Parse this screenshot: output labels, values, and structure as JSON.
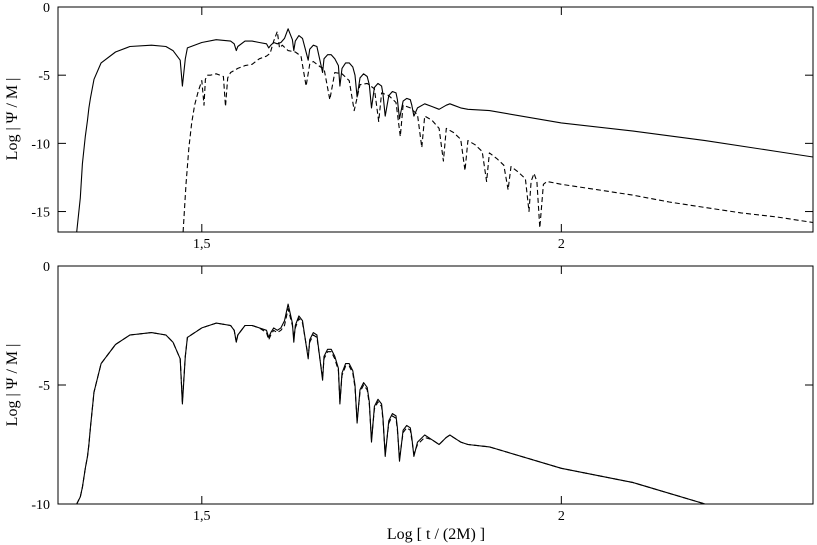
{
  "chart_data": [
    {
      "type": "line",
      "title": "",
      "xlabel": "",
      "ylabel": "Log | Ψ / M |",
      "xlim": [
        1.3,
        2.35
      ],
      "ylim": [
        -16.5,
        0
      ],
      "xticks": [
        1.5,
        2
      ],
      "xtick_labels": [
        "1,5",
        "2"
      ],
      "yticks": [
        0,
        -5,
        -10,
        -15
      ],
      "ytick_labels": [
        "0",
        "-5",
        "-10",
        "-15"
      ],
      "grid": false,
      "series": [
        {
          "style": "solid",
          "x": [
            1.326,
            1.331,
            1.334,
            1.338,
            1.341,
            1.343,
            1.345,
            1.35,
            1.36,
            1.38,
            1.4,
            1.43,
            1.45,
            1.46,
            1.47,
            1.473,
            1.477,
            1.48,
            1.5,
            1.52,
            1.54,
            1.545,
            1.548,
            1.55,
            1.56,
            1.57,
            1.58,
            1.59,
            1.593,
            1.596,
            1.6,
            1.605,
            1.61,
            1.615,
            1.62,
            1.626,
            1.628,
            1.63,
            1.635,
            1.64,
            1.648,
            1.65,
            1.655,
            1.66,
            1.668,
            1.67,
            1.675,
            1.68,
            1.685,
            1.69,
            1.692,
            1.695,
            1.7,
            1.705,
            1.71,
            1.713,
            1.716,
            1.72,
            1.725,
            1.73,
            1.733,
            1.736,
            1.74,
            1.745,
            1.75,
            1.752,
            1.755,
            1.76,
            1.765,
            1.77,
            1.772,
            1.775,
            1.78,
            1.785,
            1.79,
            1.792,
            1.795,
            1.8,
            1.81,
            1.82,
            1.83,
            1.84,
            1.845,
            1.85,
            1.86,
            1.87,
            1.9,
            2.0,
            2.1,
            2.2,
            2.3,
            2.35
          ],
          "y": [
            -16.5,
            -14.0,
            -11.5,
            -9.5,
            -8.3,
            -7.4,
            -6.7,
            -5.3,
            -4.1,
            -3.3,
            -2.9,
            -2.8,
            -2.9,
            -3.2,
            -3.9,
            -5.8,
            -3.8,
            -3.0,
            -2.6,
            -2.4,
            -2.5,
            -2.7,
            -3.2,
            -2.9,
            -2.5,
            -2.5,
            -2.6,
            -2.7,
            -3.0,
            -2.8,
            -2.6,
            -2.7,
            -2.6,
            -2.3,
            -1.6,
            -2.4,
            -3.2,
            -2.5,
            -2.1,
            -2.3,
            -3.9,
            -3.1,
            -2.8,
            -2.9,
            -4.8,
            -3.8,
            -3.5,
            -3.5,
            -3.8,
            -4.3,
            -5.8,
            -4.5,
            -4.1,
            -4.1,
            -4.4,
            -5.0,
            -6.6,
            -5.2,
            -4.9,
            -5.1,
            -5.7,
            -7.4,
            -5.9,
            -5.6,
            -5.8,
            -6.4,
            -8.0,
            -6.5,
            -6.2,
            -6.3,
            -6.8,
            -8.2,
            -6.9,
            -6.7,
            -6.8,
            -7.2,
            -8.0,
            -7.4,
            -7.1,
            -7.3,
            -7.5,
            -7.2,
            -7.1,
            -7.2,
            -7.4,
            -7.5,
            -7.6,
            -8.5,
            -9.1,
            -9.8,
            -10.6,
            -11.0
          ]
        },
        {
          "style": "dashed",
          "x": [
            1.474,
            1.478,
            1.482,
            1.486,
            1.49,
            1.495,
            1.5,
            1.503,
            1.505,
            1.508,
            1.512,
            1.52,
            1.53,
            1.533,
            1.536,
            1.54,
            1.55,
            1.56,
            1.57,
            1.575,
            1.58,
            1.59,
            1.595,
            1.6,
            1.605,
            1.608,
            1.612,
            1.62,
            1.63,
            1.638,
            1.645,
            1.65,
            1.655,
            1.66,
            1.665,
            1.67,
            1.678,
            1.685,
            1.695,
            1.705,
            1.712,
            1.72,
            1.73,
            1.74,
            1.746,
            1.75,
            1.76,
            1.77,
            1.776,
            1.78,
            1.79,
            1.8,
            1.806,
            1.81,
            1.82,
            1.83,
            1.836,
            1.84,
            1.85,
            1.86,
            1.866,
            1.87,
            1.88,
            1.89,
            1.896,
            1.9,
            1.91,
            1.92,
            1.926,
            1.93,
            1.94,
            1.95,
            1.955,
            1.958,
            1.962,
            1.966,
            1.97,
            1.975,
            1.98,
            2.0,
            2.05,
            2.1,
            2.15,
            2.2,
            2.25,
            2.3,
            2.35
          ],
          "y": [
            -16.5,
            -13.0,
            -10.3,
            -8.5,
            -7.2,
            -6.2,
            -5.4,
            -7.2,
            -5.3,
            -5.0,
            -5.0,
            -4.9,
            -5.1,
            -7.3,
            -5.2,
            -4.8,
            -4.5,
            -4.3,
            -4.2,
            -4.0,
            -3.8,
            -3.6,
            -3.4,
            -2.5,
            -1.8,
            -3.0,
            -2.8,
            -3.2,
            -3.3,
            -3.6,
            -5.8,
            -4.2,
            -4.0,
            -4.2,
            -4.4,
            -4.5,
            -6.8,
            -4.8,
            -4.9,
            -5.4,
            -7.6,
            -5.7,
            -5.6,
            -6.0,
            -8.4,
            -6.3,
            -6.5,
            -7.0,
            -9.5,
            -7.2,
            -7.4,
            -7.9,
            -10.3,
            -8.0,
            -8.3,
            -8.9,
            -11.3,
            -8.9,
            -9.2,
            -9.7,
            -12.0,
            -9.8,
            -10.1,
            -10.6,
            -12.8,
            -10.7,
            -11.1,
            -11.6,
            -13.4,
            -11.7,
            -12.1,
            -12.6,
            -15.0,
            -12.8,
            -12.2,
            -12.8,
            -16.2,
            -13.0,
            -12.8,
            -13.0,
            -13.4,
            -13.8,
            -14.3,
            -14.7,
            -15.1,
            -15.4,
            -15.8
          ]
        }
      ]
    },
    {
      "type": "line",
      "title": "",
      "xlabel": "Log [ t / (2M) ]",
      "ylabel": "Log | Ψ / M |",
      "xlim": [
        1.3,
        2.35
      ],
      "ylim": [
        -10,
        0
      ],
      "xticks": [
        1.5,
        2
      ],
      "xtick_labels": [
        "1,5",
        "2"
      ],
      "yticks": [
        0,
        -5,
        -10
      ],
      "ytick_labels": [
        "0",
        "-5",
        "-10"
      ],
      "grid": false,
      "series": [
        {
          "style": "solid",
          "x": [
            1.326,
            1.331,
            1.334,
            1.338,
            1.341,
            1.343,
            1.345,
            1.35,
            1.36,
            1.38,
            1.4,
            1.43,
            1.45,
            1.46,
            1.47,
            1.473,
            1.477,
            1.48,
            1.5,
            1.52,
            1.54,
            1.545,
            1.548,
            1.55,
            1.56,
            1.57,
            1.58,
            1.59,
            1.593,
            1.596,
            1.6,
            1.605,
            1.61,
            1.615,
            1.62,
            1.626,
            1.628,
            1.63,
            1.635,
            1.64,
            1.648,
            1.65,
            1.655,
            1.66,
            1.668,
            1.67,
            1.675,
            1.68,
            1.685,
            1.69,
            1.692,
            1.695,
            1.7,
            1.705,
            1.71,
            1.713,
            1.716,
            1.72,
            1.725,
            1.73,
            1.733,
            1.736,
            1.74,
            1.745,
            1.75,
            1.752,
            1.755,
            1.76,
            1.765,
            1.77,
            1.772,
            1.775,
            1.78,
            1.785,
            1.79,
            1.792,
            1.795,
            1.8,
            1.81,
            1.82,
            1.83,
            1.84,
            1.845,
            1.85,
            1.86,
            1.87,
            1.9,
            2.0,
            2.1,
            2.2
          ],
          "y": [
            -10.0,
            -9.7,
            -9.3,
            -8.5,
            -8.0,
            -7.5,
            -6.8,
            -5.3,
            -4.1,
            -3.3,
            -2.9,
            -2.8,
            -2.9,
            -3.2,
            -3.9,
            -5.8,
            -3.8,
            -3.0,
            -2.6,
            -2.4,
            -2.5,
            -2.7,
            -3.2,
            -2.9,
            -2.5,
            -2.5,
            -2.6,
            -2.7,
            -3.0,
            -2.8,
            -2.6,
            -2.7,
            -2.6,
            -2.3,
            -1.6,
            -2.4,
            -3.2,
            -2.5,
            -2.1,
            -2.3,
            -3.9,
            -3.1,
            -2.8,
            -2.9,
            -4.8,
            -3.8,
            -3.5,
            -3.5,
            -3.8,
            -4.3,
            -5.8,
            -4.5,
            -4.1,
            -4.1,
            -4.4,
            -5.0,
            -6.6,
            -5.2,
            -4.9,
            -5.1,
            -5.7,
            -7.4,
            -5.9,
            -5.6,
            -5.8,
            -6.4,
            -8.0,
            -6.5,
            -6.2,
            -6.3,
            -6.8,
            -8.2,
            -6.9,
            -6.7,
            -6.8,
            -7.2,
            -8.0,
            -7.4,
            -7.1,
            -7.3,
            -7.5,
            -7.2,
            -7.1,
            -7.2,
            -7.4,
            -7.5,
            -7.6,
            -8.5,
            -9.1,
            -10.0
          ]
        },
        {
          "style": "dashed",
          "x": [
            1.326,
            1.331,
            1.334,
            1.338,
            1.341,
            1.343,
            1.345,
            1.35,
            1.36,
            1.38,
            1.4,
            1.43,
            1.45,
            1.46,
            1.47,
            1.473,
            1.477,
            1.48,
            1.5,
            1.52,
            1.54,
            1.545,
            1.548,
            1.55,
            1.56,
            1.57,
            1.58,
            1.59,
            1.593,
            1.596,
            1.6,
            1.605,
            1.61,
            1.615,
            1.62,
            1.626,
            1.628,
            1.63,
            1.635,
            1.64,
            1.648,
            1.65,
            1.655,
            1.66,
            1.668,
            1.67,
            1.675,
            1.68,
            1.685,
            1.69,
            1.692,
            1.695,
            1.7,
            1.705,
            1.71,
            1.713,
            1.716,
            1.72,
            1.725,
            1.73,
            1.733,
            1.736,
            1.74,
            1.745,
            1.75,
            1.752,
            1.755,
            1.76,
            1.765,
            1.77,
            1.772,
            1.775,
            1.78,
            1.785,
            1.79,
            1.792,
            1.795,
            1.8,
            1.81,
            1.82,
            1.83,
            1.84,
            1.845,
            1.85,
            1.86,
            1.87,
            1.9,
            2.0,
            2.1,
            2.2
          ],
          "y": [
            -10.0,
            -9.7,
            -9.3,
            -8.5,
            -8.0,
            -7.5,
            -6.8,
            -5.3,
            -4.1,
            -3.3,
            -2.9,
            -2.8,
            -2.9,
            -3.2,
            -3.9,
            -5.7,
            -3.8,
            -3.0,
            -2.6,
            -2.4,
            -2.5,
            -2.7,
            -3.2,
            -2.9,
            -2.5,
            -2.5,
            -2.6,
            -2.8,
            -3.1,
            -2.9,
            -2.7,
            -2.8,
            -2.7,
            -2.5,
            -1.8,
            -2.5,
            -3.0,
            -2.6,
            -2.2,
            -2.4,
            -3.8,
            -3.2,
            -2.9,
            -3.0,
            -4.7,
            -3.9,
            -3.6,
            -3.6,
            -3.9,
            -4.4,
            -5.7,
            -4.6,
            -4.2,
            -4.2,
            -4.5,
            -5.1,
            -6.5,
            -5.3,
            -5.0,
            -5.2,
            -5.8,
            -7.3,
            -6.0,
            -5.7,
            -5.9,
            -6.5,
            -7.9,
            -6.6,
            -6.3,
            -6.4,
            -6.9,
            -8.1,
            -7.0,
            -6.8,
            -6.9,
            -7.3,
            -7.9,
            -7.5,
            -7.2,
            -7.3,
            -7.5,
            -7.2,
            -7.1,
            -7.2,
            -7.4,
            -7.5,
            -7.6,
            -8.5,
            -9.1,
            -10.0
          ]
        }
      ]
    }
  ]
}
